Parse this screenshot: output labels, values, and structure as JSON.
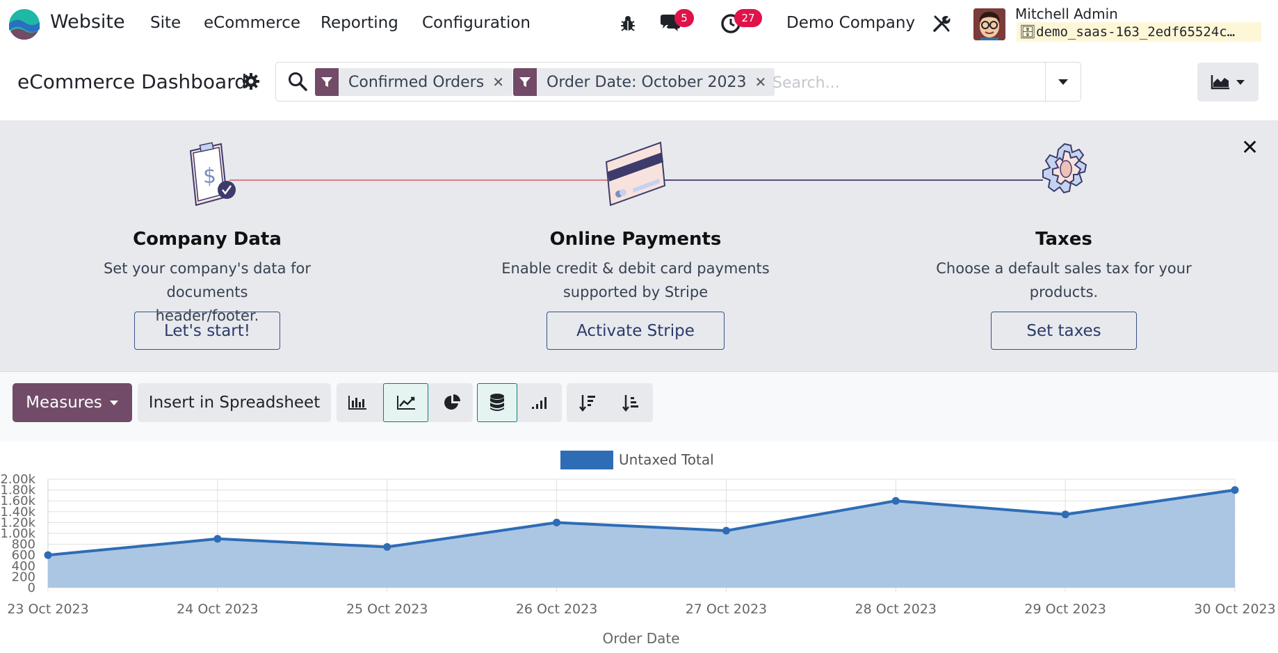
{
  "topbar": {
    "app_name": "Website",
    "menu": [
      "Site",
      "eCommerce",
      "Reporting",
      "Configuration"
    ],
    "messages_count": "5",
    "activities_count": "27",
    "company": "Demo Company",
    "user_name": "Mitchell Admin",
    "database": "demo_saas-163_2edf65524c…"
  },
  "control_panel": {
    "title": "eCommerce Dashboard",
    "facets": [
      {
        "label": "Confirmed Orders"
      },
      {
        "label": "Order Date: October 2023"
      }
    ],
    "search_placeholder": "Search..."
  },
  "onboarding": {
    "steps": [
      {
        "title": "Company Data",
        "desc_line1": "Set your company's data for documents",
        "desc_line2": "header/footer.",
        "button": "Let's start!"
      },
      {
        "title": "Online Payments",
        "desc_line1": "Enable credit & debit card payments",
        "desc_line2": "supported by Stripe",
        "button": "Activate Stripe"
      },
      {
        "title": "Taxes",
        "desc_line1": "Choose a default sales tax for your",
        "desc_line2": "products.",
        "button": "Set taxes"
      }
    ]
  },
  "toolbar": {
    "measures_label": "Measures",
    "spreadsheet_label": "Insert in Spreadsheet"
  },
  "colors": {
    "brand": "#714b67",
    "series": "#2e6cb5",
    "series_fill": "#a6c3e0",
    "badge": "#e0124a",
    "active_toggle": "#017e84"
  },
  "chart_data": {
    "type": "area",
    "x": [
      "23 Oct 2023",
      "24 Oct 2023",
      "25 Oct 2023",
      "26 Oct 2023",
      "27 Oct 2023",
      "28 Oct 2023",
      "29 Oct 2023",
      "30 Oct 2023"
    ],
    "series": [
      {
        "name": "Untaxed Total",
        "values": [
          600,
          900,
          750,
          1200,
          1050,
          1600,
          1350,
          1800
        ]
      }
    ],
    "xlabel": "Order Date",
    "ylabel": "",
    "ylim": [
      0,
      2000
    ],
    "yticks": [
      "0",
      "200",
      "400",
      "600",
      "800",
      "1.00k",
      "1.20k",
      "1.40k",
      "1.60k",
      "1.80k",
      "2.00k"
    ],
    "grid": true,
    "legend": "top-center"
  }
}
